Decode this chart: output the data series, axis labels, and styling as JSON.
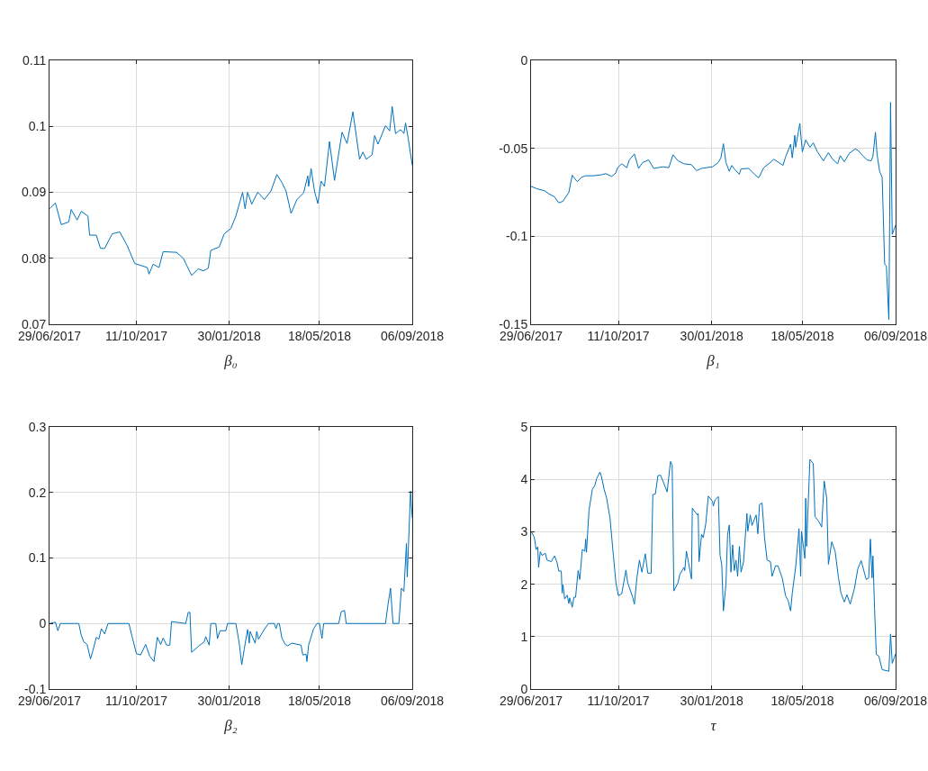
{
  "chart_data": [
    {
      "type": "line",
      "xlabel": "β₀",
      "color": "#0072bd",
      "grid": true,
      "xlim": [
        "2017-06-29",
        "2018-09-06"
      ],
      "xticks": [
        {
          "value": "2017-06-29",
          "label": "29/06/2017"
        },
        {
          "value": "2017-10-11",
          "label": "11/10/2017"
        },
        {
          "value": "2018-01-30",
          "label": "30/01/2018"
        },
        {
          "value": "2018-05-18",
          "label": "18/05/2018"
        },
        {
          "value": "2018-09-06",
          "label": "06/09/2018"
        }
      ],
      "ylim": [
        0.07,
        0.11
      ],
      "yticks": [
        0.07,
        0.08,
        0.09,
        0.1,
        0.11
      ],
      "x": [
        "2017-06-29",
        "2017-07-06",
        "2017-07-13",
        "2017-07-22",
        "2017-07-25",
        "2017-08-01",
        "2017-08-06",
        "2017-08-14",
        "2017-08-16",
        "2017-08-24",
        "2017-08-29",
        "2017-09-03",
        "2017-09-12",
        "2017-09-21",
        "2017-09-30",
        "2017-10-09",
        "2017-10-24",
        "2017-10-26",
        "2017-10-31",
        "2017-11-07",
        "2017-11-12",
        "2017-11-28",
        "2017-12-06",
        "2017-12-16",
        "2017-12-24",
        "2017-12-30",
        "2018-01-05",
        "2018-01-08",
        "2018-01-18",
        "2018-01-24",
        "2018-02-01",
        "2018-02-07",
        "2018-02-15",
        "2018-02-18",
        "2018-02-21",
        "2018-02-26",
        "2018-03-05",
        "2018-03-09",
        "2018-03-13",
        "2018-03-21",
        "2018-03-28",
        "2018-04-03",
        "2018-04-08",
        "2018-04-14",
        "2018-04-21",
        "2018-04-29",
        "2018-05-04",
        "2018-05-05",
        "2018-05-08",
        "2018-05-12",
        "2018-05-16",
        "2018-05-20",
        "2018-05-24",
        "2018-05-30",
        "2018-06-05",
        "2018-06-14",
        "2018-06-20",
        "2018-06-27",
        "2018-07-05",
        "2018-07-09",
        "2018-07-13",
        "2018-07-20",
        "2018-07-23",
        "2018-07-27",
        "2018-08-05",
        "2018-08-10",
        "2018-08-13",
        "2018-08-17",
        "2018-08-23",
        "2018-08-27",
        "2018-08-29",
        "2018-09-01",
        "2018-09-06"
      ],
      "values": [
        0.0875,
        0.0884,
        0.0851,
        0.0855,
        0.0874,
        0.0858,
        0.0871,
        0.0864,
        0.0835,
        0.0835,
        0.0815,
        0.0815,
        0.0837,
        0.084,
        0.0819,
        0.0792,
        0.0786,
        0.0776,
        0.0791,
        0.0786,
        0.081,
        0.0809,
        0.08,
        0.0774,
        0.0784,
        0.0781,
        0.0785,
        0.0812,
        0.0817,
        0.0837,
        0.0845,
        0.0864,
        0.09,
        0.0875,
        0.09,
        0.0882,
        0.09,
        0.0895,
        0.0889,
        0.0902,
        0.0927,
        0.0915,
        0.0902,
        0.0868,
        0.0889,
        0.0899,
        0.0925,
        0.0909,
        0.0936,
        0.0902,
        0.0883,
        0.0917,
        0.0909,
        0.0977,
        0.0918,
        0.0991,
        0.0974,
        0.1022,
        0.095,
        0.0961,
        0.095,
        0.0957,
        0.0986,
        0.0973,
        0.1001,
        0.0993,
        0.103,
        0.0989,
        0.0995,
        0.0989,
        0.1005,
        0.0983,
        0.0941
      ]
    },
    {
      "type": "line",
      "xlabel": "β₁",
      "color": "#0072bd",
      "grid": true,
      "xlim": [
        "2017-06-29",
        "2018-09-06"
      ],
      "xticks": [
        {
          "value": "2017-06-29",
          "label": "29/06/2017"
        },
        {
          "value": "2017-10-11",
          "label": "11/10/2017"
        },
        {
          "value": "2018-01-30",
          "label": "30/01/2018"
        },
        {
          "value": "2018-05-18",
          "label": "18/05/2018"
        },
        {
          "value": "2018-09-06",
          "label": "06/09/2018"
        }
      ],
      "ylim": [
        -0.15,
        0
      ],
      "yticks": [
        -0.15,
        -0.1,
        -0.05,
        0
      ],
      "x": [
        "2017-06-29",
        "2017-07-06",
        "2017-07-15",
        "2017-07-20",
        "2017-07-27",
        "2017-08-01",
        "2017-08-06",
        "2017-08-13",
        "2017-08-17",
        "2017-08-23",
        "2017-08-28",
        "2017-09-02",
        "2017-09-11",
        "2017-09-20",
        "2017-09-26",
        "2017-10-03",
        "2017-10-08",
        "2017-10-10",
        "2017-10-15",
        "2017-10-21",
        "2017-10-24",
        "2017-10-30",
        "2017-11-04",
        "2017-11-09",
        "2017-11-16",
        "2017-11-22",
        "2017-12-03",
        "2017-12-10",
        "2017-12-15",
        "2017-12-21",
        "2017-12-28",
        "2018-01-06",
        "2018-01-12",
        "2018-01-18",
        "2018-01-31",
        "2018-02-07",
        "2018-02-10",
        "2018-02-13",
        "2018-02-16",
        "2018-02-20",
        "2018-02-23",
        "2018-02-26",
        "2018-03-04",
        "2018-03-06",
        "2018-03-15",
        "2018-03-22",
        "2018-03-27",
        "2018-04-02",
        "2018-04-10",
        "2018-04-14",
        "2018-04-25",
        "2018-04-28",
        "2018-05-04",
        "2018-05-06",
        "2018-05-09",
        "2018-05-10",
        "2018-05-15",
        "2018-05-18",
        "2018-05-22",
        "2018-05-27",
        "2018-05-31",
        "2018-06-05",
        "2018-06-12",
        "2018-06-18",
        "2018-06-23",
        "2018-06-29",
        "2018-07-02",
        "2018-07-07",
        "2018-07-13",
        "2018-07-20",
        "2018-07-23",
        "2018-07-29",
        "2018-08-03",
        "2018-08-08",
        "2018-08-10",
        "2018-08-13",
        "2018-08-15",
        "2018-08-18",
        "2018-08-21",
        "2018-08-24",
        "2018-08-26",
        "2018-08-29",
        "2018-08-31",
        "2018-09-02",
        "2018-09-06"
      ],
      "values": [
        -0.0716,
        -0.073,
        -0.0741,
        -0.0758,
        -0.0776,
        -0.081,
        -0.0801,
        -0.075,
        -0.0653,
        -0.069,
        -0.0665,
        -0.0656,
        -0.0656,
        -0.0651,
        -0.0644,
        -0.066,
        -0.0639,
        -0.061,
        -0.0588,
        -0.061,
        -0.0566,
        -0.0532,
        -0.0614,
        -0.058,
        -0.0566,
        -0.0614,
        -0.0605,
        -0.061,
        -0.0537,
        -0.0571,
        -0.0588,
        -0.0593,
        -0.0627,
        -0.0614,
        -0.0605,
        -0.058,
        -0.0554,
        -0.0474,
        -0.058,
        -0.0631,
        -0.0597,
        -0.0617,
        -0.0648,
        -0.0617,
        -0.0614,
        -0.0648,
        -0.0668,
        -0.061,
        -0.058,
        -0.0562,
        -0.0597,
        -0.0549,
        -0.0477,
        -0.0554,
        -0.0426,
        -0.0494,
        -0.0358,
        -0.052,
        -0.0452,
        -0.0494,
        -0.0469,
        -0.052,
        -0.0571,
        -0.0525,
        -0.0562,
        -0.0588,
        -0.0542,
        -0.0576,
        -0.0528,
        -0.0503,
        -0.0511,
        -0.0542,
        -0.0566,
        -0.0571,
        -0.0545,
        -0.0409,
        -0.0537,
        -0.0631,
        -0.0665,
        -0.1159,
        -0.1168,
        -0.1474,
        -0.0239,
        -0.0989,
        -0.0937
      ]
    },
    {
      "type": "line",
      "xlabel": "β₂",
      "color": "#0072bd",
      "grid": true,
      "xlim": [
        "2017-06-29",
        "2018-09-06"
      ],
      "xticks": [
        {
          "value": "2017-06-29",
          "label": "29/06/2017"
        },
        {
          "value": "2017-10-11",
          "label": "11/10/2017"
        },
        {
          "value": "2018-01-30",
          "label": "30/01/2018"
        },
        {
          "value": "2018-05-18",
          "label": "18/05/2018"
        },
        {
          "value": "2018-09-06",
          "label": "06/09/2018"
        }
      ],
      "ylim": [
        -0.1,
        0.3
      ],
      "yticks": [
        -0.1,
        0,
        0.1,
        0.2,
        0.3
      ],
      "x": [
        "2017-06-29",
        "2017-07-06",
        "2017-07-09",
        "2017-07-12",
        "2017-08-03",
        "2017-08-06",
        "2017-08-09",
        "2017-08-13",
        "2017-08-17",
        "2017-08-20",
        "2017-08-24",
        "2017-08-27",
        "2017-08-30",
        "2017-09-03",
        "2017-09-07",
        "2017-10-02",
        "2017-10-06",
        "2017-10-11",
        "2017-10-16",
        "2017-10-22",
        "2017-10-27",
        "2017-11-01",
        "2017-11-05",
        "2017-11-09",
        "2017-11-12",
        "2017-11-16",
        "2017-11-20",
        "2017-11-22",
        "2017-12-09",
        "2017-12-12",
        "2017-12-14",
        "2017-12-16",
        "2017-12-24",
        "2017-12-31",
        "2018-01-02",
        "2018-01-06",
        "2018-01-08",
        "2018-01-14",
        "2018-01-16",
        "2018-01-19",
        "2018-01-26",
        "2018-01-28",
        "2018-02-07",
        "2018-02-11",
        "2018-02-14",
        "2018-02-17",
        "2018-02-21",
        "2018-02-23",
        "2018-02-24",
        "2018-03-02",
        "2018-03-04",
        "2018-03-06",
        "2018-03-13",
        "2018-03-18",
        "2018-03-25",
        "2018-03-27",
        "2018-03-29",
        "2018-03-31",
        "2018-04-03",
        "2018-04-07",
        "2018-04-10",
        "2018-04-15",
        "2018-04-26",
        "2018-04-28",
        "2018-05-02",
        "2018-05-03",
        "2018-05-05",
        "2018-05-11",
        "2018-05-15",
        "2018-05-18",
        "2018-05-21",
        "2018-05-23",
        "2018-06-10",
        "2018-06-13",
        "2018-06-17",
        "2018-06-19",
        "2018-08-05",
        "2018-08-08",
        "2018-08-11",
        "2018-08-14",
        "2018-08-21",
        "2018-08-24",
        "2018-08-27",
        "2018-08-30",
        "2018-08-31",
        "2018-09-04",
        "2018-09-06"
      ],
      "values": [
        0,
        0.002,
        -0.011,
        0,
        0,
        -0.018,
        -0.028,
        -0.032,
        -0.054,
        -0.041,
        -0.021,
        -0.024,
        -0.008,
        -0.016,
        0,
        0,
        -0.021,
        -0.046,
        -0.048,
        -0.032,
        -0.05,
        -0.058,
        -0.021,
        -0.032,
        -0.022,
        -0.033,
        -0.033,
        0.003,
        0,
        0.017,
        0.017,
        -0.044,
        -0.035,
        -0.028,
        -0.02,
        -0.033,
        0,
        0,
        -0.023,
        -0.011,
        -0.011,
        0,
        0,
        -0.03,
        -0.063,
        -0.039,
        -0.009,
        -0.03,
        -0.012,
        -0.03,
        -0.012,
        -0.024,
        -0.009,
        0,
        0,
        -0.008,
        0,
        0,
        -0.022,
        -0.032,
        -0.034,
        -0.03,
        -0.033,
        -0.048,
        -0.047,
        -0.058,
        -0.033,
        -0.008,
        0,
        0,
        -0.023,
        0,
        0,
        0.018,
        0.02,
        0,
        0,
        0.029,
        0.054,
        0,
        0,
        0.054,
        0.049,
        0.122,
        0.071,
        0.202,
        0.161
      ]
    },
    {
      "type": "line",
      "xlabel": "τ",
      "color": "#0072bd",
      "grid": true,
      "xlim": [
        "2017-06-29",
        "2018-09-06"
      ],
      "xticks": [
        {
          "value": "2017-06-29",
          "label": "29/06/2017"
        },
        {
          "value": "2017-10-11",
          "label": "11/10/2017"
        },
        {
          "value": "2018-01-30",
          "label": "30/01/2018"
        },
        {
          "value": "2018-05-18",
          "label": "18/05/2018"
        },
        {
          "value": "2018-09-06",
          "label": "06/09/2018"
        }
      ],
      "ylim": [
        0,
        5
      ],
      "yticks": [
        0,
        1,
        2,
        3,
        4,
        5
      ],
      "x": [
        "2017-06-29",
        "2017-07-03",
        "2017-07-05",
        "2017-07-07",
        "2017-07-08",
        "2017-07-10",
        "2017-07-12",
        "2017-07-16",
        "2017-07-18",
        "2017-07-23",
        "2017-07-27",
        "2017-07-30",
        "2017-08-01",
        "2017-08-04",
        "2017-08-05",
        "2017-08-06",
        "2017-08-08",
        "2017-08-11",
        "2017-08-13",
        "2017-08-14",
        "2017-08-17",
        "2017-08-19",
        "2017-08-21",
        "2017-08-24",
        "2017-08-26",
        "2017-08-29",
        "2017-09-01",
        "2017-09-02",
        "2017-09-03",
        "2017-09-06",
        "2017-09-10",
        "2017-09-13",
        "2017-09-15",
        "2017-09-19",
        "2017-09-21",
        "2017-09-24",
        "2017-09-27",
        "2017-10-01",
        "2017-10-05",
        "2017-10-08",
        "2017-10-11",
        "2017-10-15",
        "2017-10-20",
        "2017-10-22",
        "2017-10-28",
        "2017-10-30",
        "2017-11-02",
        "2017-11-05",
        "2017-11-08",
        "2017-11-12",
        "2017-11-15",
        "2017-11-19",
        "2017-11-21",
        "2017-11-24",
        "2017-11-27",
        "2017-11-30",
        "2017-12-03",
        "2017-12-08",
        "2017-12-12",
        "2017-12-14",
        "2017-12-16",
        "2017-12-21",
        "2017-12-23",
        "2017-12-28",
        "2017-12-29",
        "2017-12-31",
        "2018-01-06",
        "2018-01-07",
        "2018-01-13",
        "2018-01-14",
        "2018-01-15",
        "2018-01-18",
        "2018-01-20",
        "2018-01-23",
        "2018-01-26",
        "2018-01-31",
        "2018-02-01",
        "2018-02-03",
        "2018-02-07",
        "2018-02-09",
        "2018-02-11",
        "2018-02-13",
        "2018-02-16",
        "2018-02-18",
        "2018-02-20",
        "2018-02-22",
        "2018-02-24",
        "2018-02-26",
        "2018-02-28",
        "2018-03-02",
        "2018-03-04",
        "2018-03-06",
        "2018-03-09",
        "2018-03-13",
        "2018-03-14",
        "2018-03-17",
        "2018-03-19",
        "2018-03-24",
        "2018-03-26",
        "2018-03-28",
        "2018-03-31",
        "2018-04-03",
        "2018-04-06",
        "2018-04-10",
        "2018-04-12",
        "2018-04-16",
        "2018-04-19",
        "2018-04-24",
        "2018-04-28",
        "2018-05-01",
        "2018-05-04",
        "2018-05-06",
        "2018-05-10",
        "2018-05-14",
        "2018-05-16",
        "2018-05-17",
        "2018-05-21",
        "2018-05-22",
        "2018-05-23",
        "2018-05-27",
        "2018-05-31",
        "2018-06-02",
        "2018-06-06",
        "2018-06-10",
        "2018-06-13",
        "2018-06-16",
        "2018-06-18",
        "2018-06-22",
        "2018-06-26",
        "2018-06-30",
        "2018-07-03",
        "2018-07-07",
        "2018-07-10",
        "2018-07-14",
        "2018-07-19",
        "2018-07-23",
        "2018-07-27",
        "2018-08-02",
        "2018-08-05",
        "2018-08-07",
        "2018-08-09",
        "2018-08-10",
        "2018-08-12",
        "2018-08-14",
        "2018-08-17",
        "2018-08-21",
        "2018-08-29",
        "2018-08-31",
        "2018-09-02",
        "2018-09-06"
      ],
      "values": [
        3.01,
        2.89,
        2.66,
        2.71,
        2.32,
        2.62,
        2.55,
        2.59,
        2.46,
        2.43,
        2.54,
        2.41,
        2.25,
        2.25,
        1.83,
        1.99,
        1.72,
        1.79,
        1.63,
        1.74,
        1.56,
        1.75,
        1.75,
        2.26,
        2.09,
        2.66,
        2.63,
        2.86,
        2.61,
        3.41,
        3.81,
        3.89,
        4.01,
        4.14,
        4.04,
        3.81,
        3.64,
        3.26,
        2.55,
        2.03,
        1.78,
        1.82,
        2.27,
        2.03,
        1.75,
        1.62,
        2.12,
        2.46,
        2.23,
        2.58,
        2.21,
        2.21,
        3.71,
        3.72,
        4.07,
        4.08,
        3.97,
        3.76,
        4.34,
        4.27,
        1.87,
        2.03,
        2.18,
        2.32,
        2.26,
        2.63,
        2.1,
        3.45,
        3.32,
        3.35,
        2.43,
        2.95,
        2.89,
        3.15,
        3.68,
        3.58,
        3.49,
        3.61,
        3.67,
        2.55,
        2.38,
        1.49,
        2,
        2.95,
        3.13,
        2.23,
        2.75,
        2.26,
        2.46,
        2.15,
        2.72,
        2.23,
        2.43,
        3.35,
        3.01,
        3.32,
        3.12,
        3.32,
        2.96,
        3.52,
        3.55,
        2.89,
        2.46,
        2.43,
        2.15,
        2.35,
        2.35,
        2.12,
        1.78,
        1.69,
        1.49,
        1.83,
        2.32,
        3.06,
        2.15,
        3.01,
        2.49,
        3.64,
        2.72,
        4.38,
        4.3,
        3.29,
        3.21,
        3.09,
        3.97,
        3.64,
        2.38,
        2.81,
        2.63,
        2.12,
        1.83,
        1.66,
        1.8,
        1.62,
        1.92,
        2.29,
        2.45,
        2.09,
        2.12,
        2.86,
        2.12,
        2.54,
        1.52,
        0.66,
        0.63,
        0.37,
        0.34,
        1.05,
        0.49,
        0.67
      ]
    }
  ]
}
